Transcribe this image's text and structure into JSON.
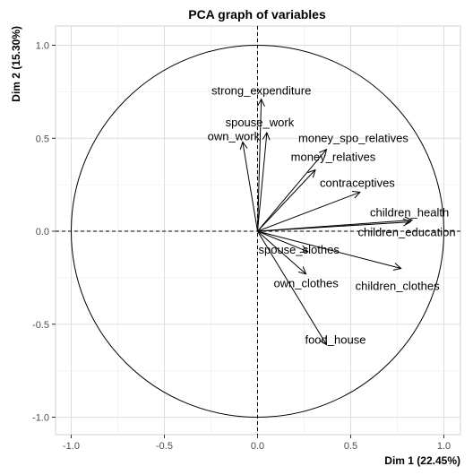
{
  "chart_data": {
    "type": "scatter",
    "title": "PCA graph of variables",
    "xlabel": "Dim 1 (22.45%)",
    "ylabel": "Dim 2 (15.30%)",
    "xlim": [
      -1.0,
      1.0
    ],
    "ylim": [
      -1.0,
      1.0
    ],
    "xticks": [
      "-1.0",
      "-0.5",
      "0.0",
      "0.5",
      "1.0"
    ],
    "yticks": [
      "-1.0",
      "-0.5",
      "0.0",
      "0.5",
      "1.0"
    ],
    "grid": true,
    "unit_circle": true,
    "variables": [
      {
        "name": "strong_expenditure",
        "x": 0.02,
        "y": 0.71
      },
      {
        "name": "spouse_work",
        "x": 0.05,
        "y": 0.53
      },
      {
        "name": "own_work",
        "x": -0.08,
        "y": 0.48
      },
      {
        "name": "money_spo_relatives",
        "x": 0.37,
        "y": 0.44
      },
      {
        "name": "money_relatives",
        "x": 0.31,
        "y": 0.33
      },
      {
        "name": "contraceptives",
        "x": 0.55,
        "y": 0.21
      },
      {
        "name": "children_health",
        "x": 0.83,
        "y": 0.06
      },
      {
        "name": "children_education",
        "x": 0.82,
        "y": 0.05
      },
      {
        "name": "spouse_clothes",
        "x": 0.27,
        "y": -0.11
      },
      {
        "name": "own_clothes",
        "x": 0.26,
        "y": -0.23
      },
      {
        "name": "children_clothes",
        "x": 0.77,
        "y": -0.2
      },
      {
        "name": "food_house",
        "x": 0.37,
        "y": -0.61
      }
    ]
  }
}
